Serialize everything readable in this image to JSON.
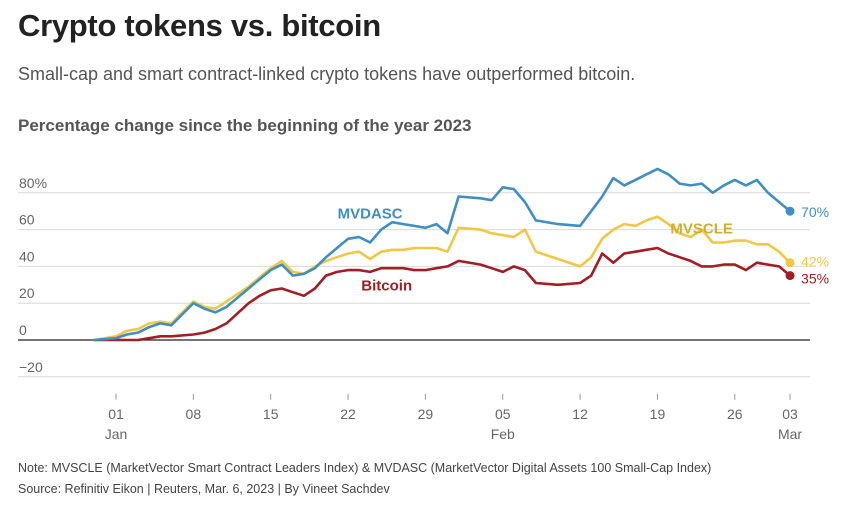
{
  "header": {
    "title": "Crypto tokens vs. bitcoin",
    "subtitle": "Small-cap and smart contract-linked crypto tokens have outperformed bitcoin.",
    "chart_title": "Percentage change since the beginning of the year 2023"
  },
  "footer": {
    "note": "Note: MVSCLE (MarketVector Smart Contract Leaders Index) & MVDASC (MarketVector Digital Assets 100 Small-Cap Index)",
    "source": "Source: Refinitiv Eikon | Reuters, Mar. 6, 2023 | By Vineet Sachdev"
  },
  "chart_data": {
    "type": "line",
    "title": "Percentage change since the beginning of the year 2023",
    "xlabel": "",
    "ylabel": "",
    "xlim": [
      -1,
      61
    ],
    "ylim": [
      -25,
      90
    ],
    "y_ticks": [
      -20,
      0,
      20,
      40,
      60,
      80
    ],
    "y_tick_labels": [
      "−20",
      "0",
      "20",
      "40",
      "60",
      "80%"
    ],
    "x_ticks": [
      {
        "day": 0,
        "label": "01",
        "sub": "Jan"
      },
      {
        "day": 7,
        "label": "08",
        "sub": ""
      },
      {
        "day": 14,
        "label": "15",
        "sub": ""
      },
      {
        "day": 21,
        "label": "22",
        "sub": ""
      },
      {
        "day": 28,
        "label": "29",
        "sub": ""
      },
      {
        "day": 35,
        "label": "05",
        "sub": "Feb"
      },
      {
        "day": 42,
        "label": "12",
        "sub": ""
      },
      {
        "day": 49,
        "label": "19",
        "sub": ""
      },
      {
        "day": 56,
        "label": "26",
        "sub": ""
      },
      {
        "day": 61,
        "label": "03",
        "sub": "Mar"
      }
    ],
    "grid": true,
    "series": [
      {
        "name": "MVDASC",
        "color": "#3f8fc5",
        "end_label": "70%",
        "x": [
          -2,
          0,
          1,
          2,
          3,
          4,
          5,
          7,
          8,
          9,
          10,
          12,
          13,
          14,
          15,
          16,
          17,
          18,
          19,
          20,
          21,
          22,
          23,
          24,
          25,
          26,
          27,
          28,
          29,
          30,
          31,
          33,
          34,
          35,
          36,
          37,
          38,
          40,
          42,
          43,
          44,
          45,
          46,
          47,
          48,
          49,
          50,
          51,
          52,
          53,
          54,
          55,
          56,
          57,
          58,
          59,
          60,
          61
        ],
        "values": [
          0,
          1,
          3,
          4,
          7,
          9,
          8,
          20,
          17,
          15,
          18,
          28,
          33,
          38,
          41,
          35,
          36,
          39,
          45,
          50,
          55,
          56,
          53,
          60,
          64,
          63,
          62,
          61,
          63,
          58,
          78,
          77,
          76,
          83,
          82,
          75,
          65,
          63,
          62,
          70,
          78,
          88,
          84,
          87,
          90,
          93,
          90,
          85,
          84,
          85,
          80,
          84,
          87,
          84,
          87,
          80,
          75,
          70
        ]
      },
      {
        "name": "MVSCLE",
        "color": "#f2c744",
        "end_label": "42%",
        "x": [
          -2,
          0,
          1,
          2,
          3,
          4,
          5,
          7,
          8,
          9,
          10,
          12,
          13,
          14,
          15,
          16,
          17,
          18,
          19,
          20,
          21,
          22,
          23,
          24,
          25,
          26,
          27,
          28,
          29,
          30,
          31,
          33,
          34,
          35,
          36,
          37,
          38,
          40,
          42,
          43,
          44,
          45,
          46,
          47,
          48,
          49,
          50,
          51,
          52,
          53,
          54,
          55,
          56,
          57,
          58,
          59,
          60,
          61
        ],
        "values": [
          0,
          2,
          5,
          6,
          9,
          10,
          9,
          21,
          18,
          17,
          21,
          29,
          34,
          39,
          43,
          37,
          36,
          40,
          43,
          45,
          47,
          48,
          44,
          48,
          49,
          49,
          50,
          50,
          50,
          48,
          61,
          60,
          58,
          57,
          56,
          60,
          48,
          44,
          40,
          45,
          55,
          60,
          63,
          62,
          65,
          67,
          63,
          58,
          56,
          60,
          53,
          53,
          54,
          54,
          52,
          52,
          48,
          42
        ]
      },
      {
        "name": "Bitcoin",
        "color": "#a31d25",
        "end_label": "35%",
        "x": [
          -2,
          0,
          1,
          2,
          3,
          4,
          5,
          7,
          8,
          9,
          10,
          12,
          13,
          14,
          15,
          16,
          17,
          18,
          19,
          20,
          21,
          22,
          23,
          24,
          25,
          26,
          27,
          28,
          29,
          30,
          31,
          33,
          34,
          35,
          36,
          37,
          38,
          40,
          42,
          43,
          44,
          45,
          46,
          47,
          48,
          49,
          50,
          51,
          52,
          53,
          54,
          55,
          56,
          57,
          58,
          59,
          60,
          61
        ],
        "values": [
          0,
          0,
          0,
          0,
          1,
          2,
          2,
          3,
          4,
          6,
          9,
          20,
          24,
          27,
          28,
          26,
          24,
          28,
          35,
          37,
          38,
          38,
          37,
          39,
          39,
          39,
          38,
          38,
          39,
          40,
          43,
          41,
          39,
          37,
          40,
          38,
          31,
          30,
          31,
          35,
          47,
          42,
          47,
          48,
          49,
          50,
          47,
          45,
          43,
          40,
          40,
          41,
          41,
          38,
          42,
          41,
          40,
          35
        ]
      }
    ],
    "annotations": [
      {
        "text": "MVDASC",
        "series": "MVDASC",
        "color": "#3f8fc5"
      },
      {
        "text": "MVSCLE",
        "series": "MVSCLE",
        "color": "#d4ad2e"
      },
      {
        "text": "Bitcoin",
        "series": "Bitcoin",
        "color": "#a31d25"
      }
    ]
  }
}
